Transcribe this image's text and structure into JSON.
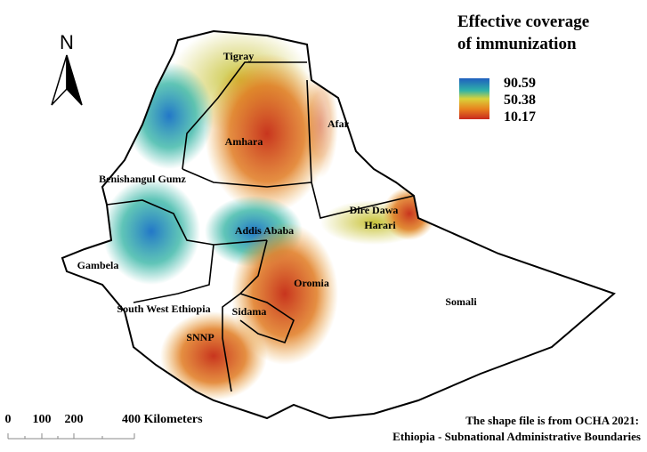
{
  "legend": {
    "title_line1": "Effective coverage",
    "title_line2": "of immunization",
    "max": "90.59",
    "mid": "50.38",
    "min": "10.17"
  },
  "north": "N",
  "regions": [
    "Tigray",
    "Afar",
    "Amhara",
    "Benishangul Gumz",
    "Dire Dawa",
    "Harari",
    "Addis Ababa",
    "Gambela",
    "Oromia",
    "Somali",
    "South West Ethiopia",
    "Sidama",
    "SNNP"
  ],
  "scale": {
    "labels": [
      "0",
      "100",
      "200",
      "400 Kilometers"
    ]
  },
  "source": {
    "line1": "The shape file is from OCHA 2021:",
    "line2": "Ethiopia - Subnational Administrative Boundaries"
  }
}
